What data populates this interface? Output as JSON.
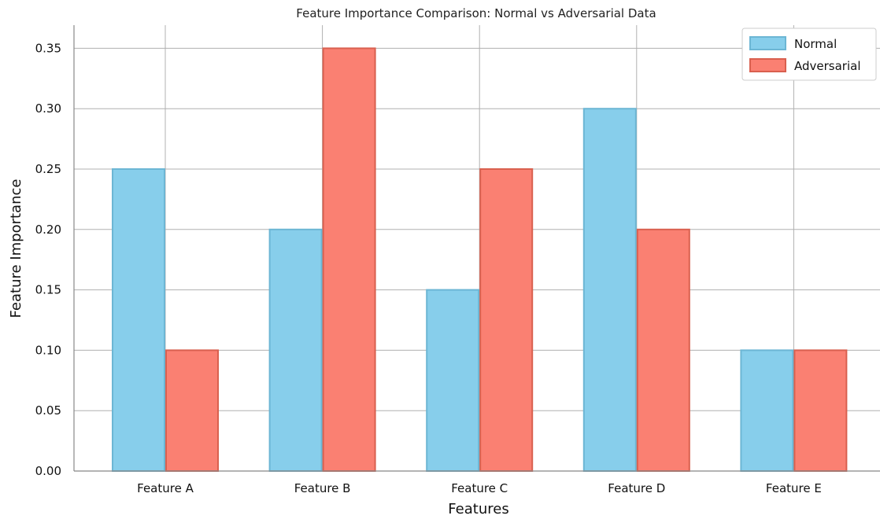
{
  "chart_data": {
    "type": "bar",
    "title": "Feature Importance Comparison: Normal vs Adversarial Data",
    "xlabel": "Features",
    "ylabel": "Feature Importance",
    "categories": [
      "Feature A",
      "Feature B",
      "Feature C",
      "Feature D",
      "Feature E"
    ],
    "series": [
      {
        "name": "Normal",
        "values": [
          0.25,
          0.2,
          0.15,
          0.3,
          0.1
        ],
        "color": "#87CEEB",
        "edge": "#6cb6d4"
      },
      {
        "name": "Adversarial",
        "values": [
          0.1,
          0.35,
          0.25,
          0.2,
          0.1
        ],
        "color": "#FA8072",
        "edge": "#d9604f"
      }
    ],
    "ylim": [
      0,
      0.37
    ],
    "yticks": [
      "0.00",
      "0.05",
      "0.10",
      "0.15",
      "0.20",
      "0.25",
      "0.30",
      "0.35"
    ],
    "grid": true,
    "legend": "top-right"
  }
}
